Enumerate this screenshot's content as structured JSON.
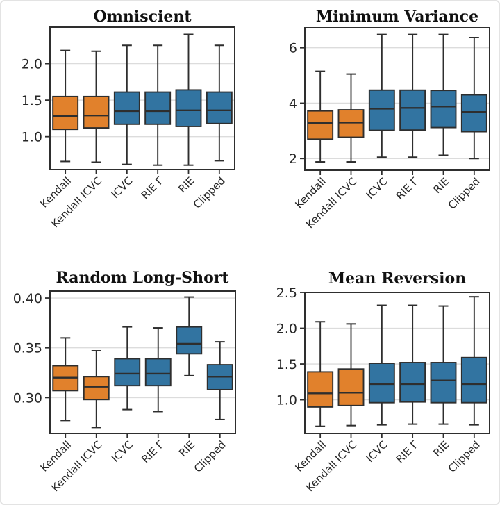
{
  "palette": {
    "orange": "#e1812c",
    "blue": "#3274a1",
    "box_edge": "#2e2e2e",
    "grid_line": "#dcdcdc",
    "title_color": "#111111",
    "tick_color": "#262626",
    "card_border": "#e3e3e3",
    "background": "#ffffff"
  },
  "chart_data": [
    {
      "type": "box",
      "title": "Omniscient",
      "categories": [
        "Kendall",
        "Kendall ICVC",
        "ICVC",
        "RIE Γ",
        "RIE",
        "Clipped"
      ],
      "series_colors": [
        "orange",
        "orange",
        "blue",
        "blue",
        "blue",
        "blue"
      ],
      "ylim": [
        0.55,
        2.5
      ],
      "ytick_values": [
        1.0,
        1.5,
        2.0
      ],
      "ytick_labels": [
        "1.0",
        "1.5",
        "2.0"
      ],
      "grid": "horizontal",
      "boxes": [
        {
          "whisker_low": 0.66,
          "q1": 1.1,
          "median": 1.28,
          "q3": 1.55,
          "whisker_high": 2.18
        },
        {
          "whisker_low": 0.65,
          "q1": 1.12,
          "median": 1.29,
          "q3": 1.55,
          "whisker_high": 2.17
        },
        {
          "whisker_low": 0.62,
          "q1": 1.17,
          "median": 1.35,
          "q3": 1.61,
          "whisker_high": 2.25
        },
        {
          "whisker_low": 0.61,
          "q1": 1.17,
          "median": 1.35,
          "q3": 1.61,
          "whisker_high": 2.25
        },
        {
          "whisker_low": 0.61,
          "q1": 1.14,
          "median": 1.36,
          "q3": 1.64,
          "whisker_high": 2.4
        },
        {
          "whisker_low": 0.67,
          "q1": 1.18,
          "median": 1.36,
          "q3": 1.61,
          "whisker_high": 2.25
        }
      ]
    },
    {
      "type": "box",
      "title": "Minimum Variance",
      "categories": [
        "Kendall",
        "Kendall ICVC",
        "ICVC",
        "RIE Γ",
        "RIE",
        "Clipped"
      ],
      "series_colors": [
        "orange",
        "orange",
        "blue",
        "blue",
        "blue",
        "blue"
      ],
      "ylim": [
        1.58,
        6.72
      ],
      "ytick_values": [
        2,
        4,
        6
      ],
      "ytick_labels": [
        "2",
        "4",
        "6"
      ],
      "grid": "horizontal",
      "boxes": [
        {
          "whisker_low": 1.88,
          "q1": 2.7,
          "median": 3.28,
          "q3": 3.72,
          "whisker_high": 5.15
        },
        {
          "whisker_low": 1.88,
          "q1": 2.77,
          "median": 3.3,
          "q3": 3.76,
          "whisker_high": 5.05
        },
        {
          "whisker_low": 2.05,
          "q1": 3.02,
          "median": 3.8,
          "q3": 4.47,
          "whisker_high": 6.48
        },
        {
          "whisker_low": 2.05,
          "q1": 3.03,
          "median": 3.83,
          "q3": 4.47,
          "whisker_high": 6.48
        },
        {
          "whisker_low": 2.12,
          "q1": 3.12,
          "median": 3.88,
          "q3": 4.46,
          "whisker_high": 6.48
        },
        {
          "whisker_low": 2.0,
          "q1": 2.97,
          "median": 3.68,
          "q3": 4.3,
          "whisker_high": 6.37
        }
      ]
    },
    {
      "type": "box",
      "title": "Random Long-Short",
      "categories": [
        "Kendall",
        "Kendall ICVC",
        "ICVC",
        "RIE Γ",
        "RIE",
        "Clipped"
      ],
      "series_colors": [
        "orange",
        "orange",
        "blue",
        "blue",
        "blue",
        "blue"
      ],
      "ylim": [
        0.264,
        0.407
      ],
      "ytick_values": [
        0.3,
        0.35,
        0.4
      ],
      "ytick_labels": [
        "0.30",
        "0.35",
        "0.40"
      ],
      "grid": "horizontal",
      "boxes": [
        {
          "whisker_low": 0.277,
          "q1": 0.307,
          "median": 0.32,
          "q3": 0.332,
          "whisker_high": 0.36
        },
        {
          "whisker_low": 0.27,
          "q1": 0.298,
          "median": 0.311,
          "q3": 0.321,
          "whisker_high": 0.347
        },
        {
          "whisker_low": 0.288,
          "q1": 0.312,
          "median": 0.324,
          "q3": 0.339,
          "whisker_high": 0.371
        },
        {
          "whisker_low": 0.286,
          "q1": 0.312,
          "median": 0.324,
          "q3": 0.339,
          "whisker_high": 0.37
        },
        {
          "whisker_low": 0.322,
          "q1": 0.344,
          "median": 0.354,
          "q3": 0.371,
          "whisker_high": 0.401
        },
        {
          "whisker_low": 0.278,
          "q1": 0.308,
          "median": 0.321,
          "q3": 0.333,
          "whisker_high": 0.356
        }
      ]
    },
    {
      "type": "box",
      "title": "Mean Reversion",
      "categories": [
        "Kendall",
        "Kendall ICVC",
        "ICVC",
        "RIE Γ",
        "RIE",
        "Clipped"
      ],
      "series_colors": [
        "orange",
        "orange",
        "blue",
        "blue",
        "blue",
        "blue"
      ],
      "ylim": [
        0.53,
        2.5
      ],
      "ytick_values": [
        1.0,
        1.5,
        2.0,
        2.5
      ],
      "ytick_labels": [
        "1.0",
        "1.5",
        "2.0",
        "2.5"
      ],
      "grid": "horizontal",
      "boxes": [
        {
          "whisker_low": 0.63,
          "q1": 0.9,
          "median": 1.09,
          "q3": 1.39,
          "whisker_high": 2.09
        },
        {
          "whisker_low": 0.64,
          "q1": 0.92,
          "median": 1.1,
          "q3": 1.43,
          "whisker_high": 2.06
        },
        {
          "whisker_low": 0.65,
          "q1": 0.96,
          "median": 1.22,
          "q3": 1.51,
          "whisker_high": 2.32
        },
        {
          "whisker_low": 0.66,
          "q1": 0.97,
          "median": 1.22,
          "q3": 1.52,
          "whisker_high": 2.32
        },
        {
          "whisker_low": 0.66,
          "q1": 0.96,
          "median": 1.27,
          "q3": 1.52,
          "whisker_high": 2.31
        },
        {
          "whisker_low": 0.65,
          "q1": 0.96,
          "median": 1.22,
          "q3": 1.59,
          "whisker_high": 2.44
        }
      ]
    }
  ]
}
